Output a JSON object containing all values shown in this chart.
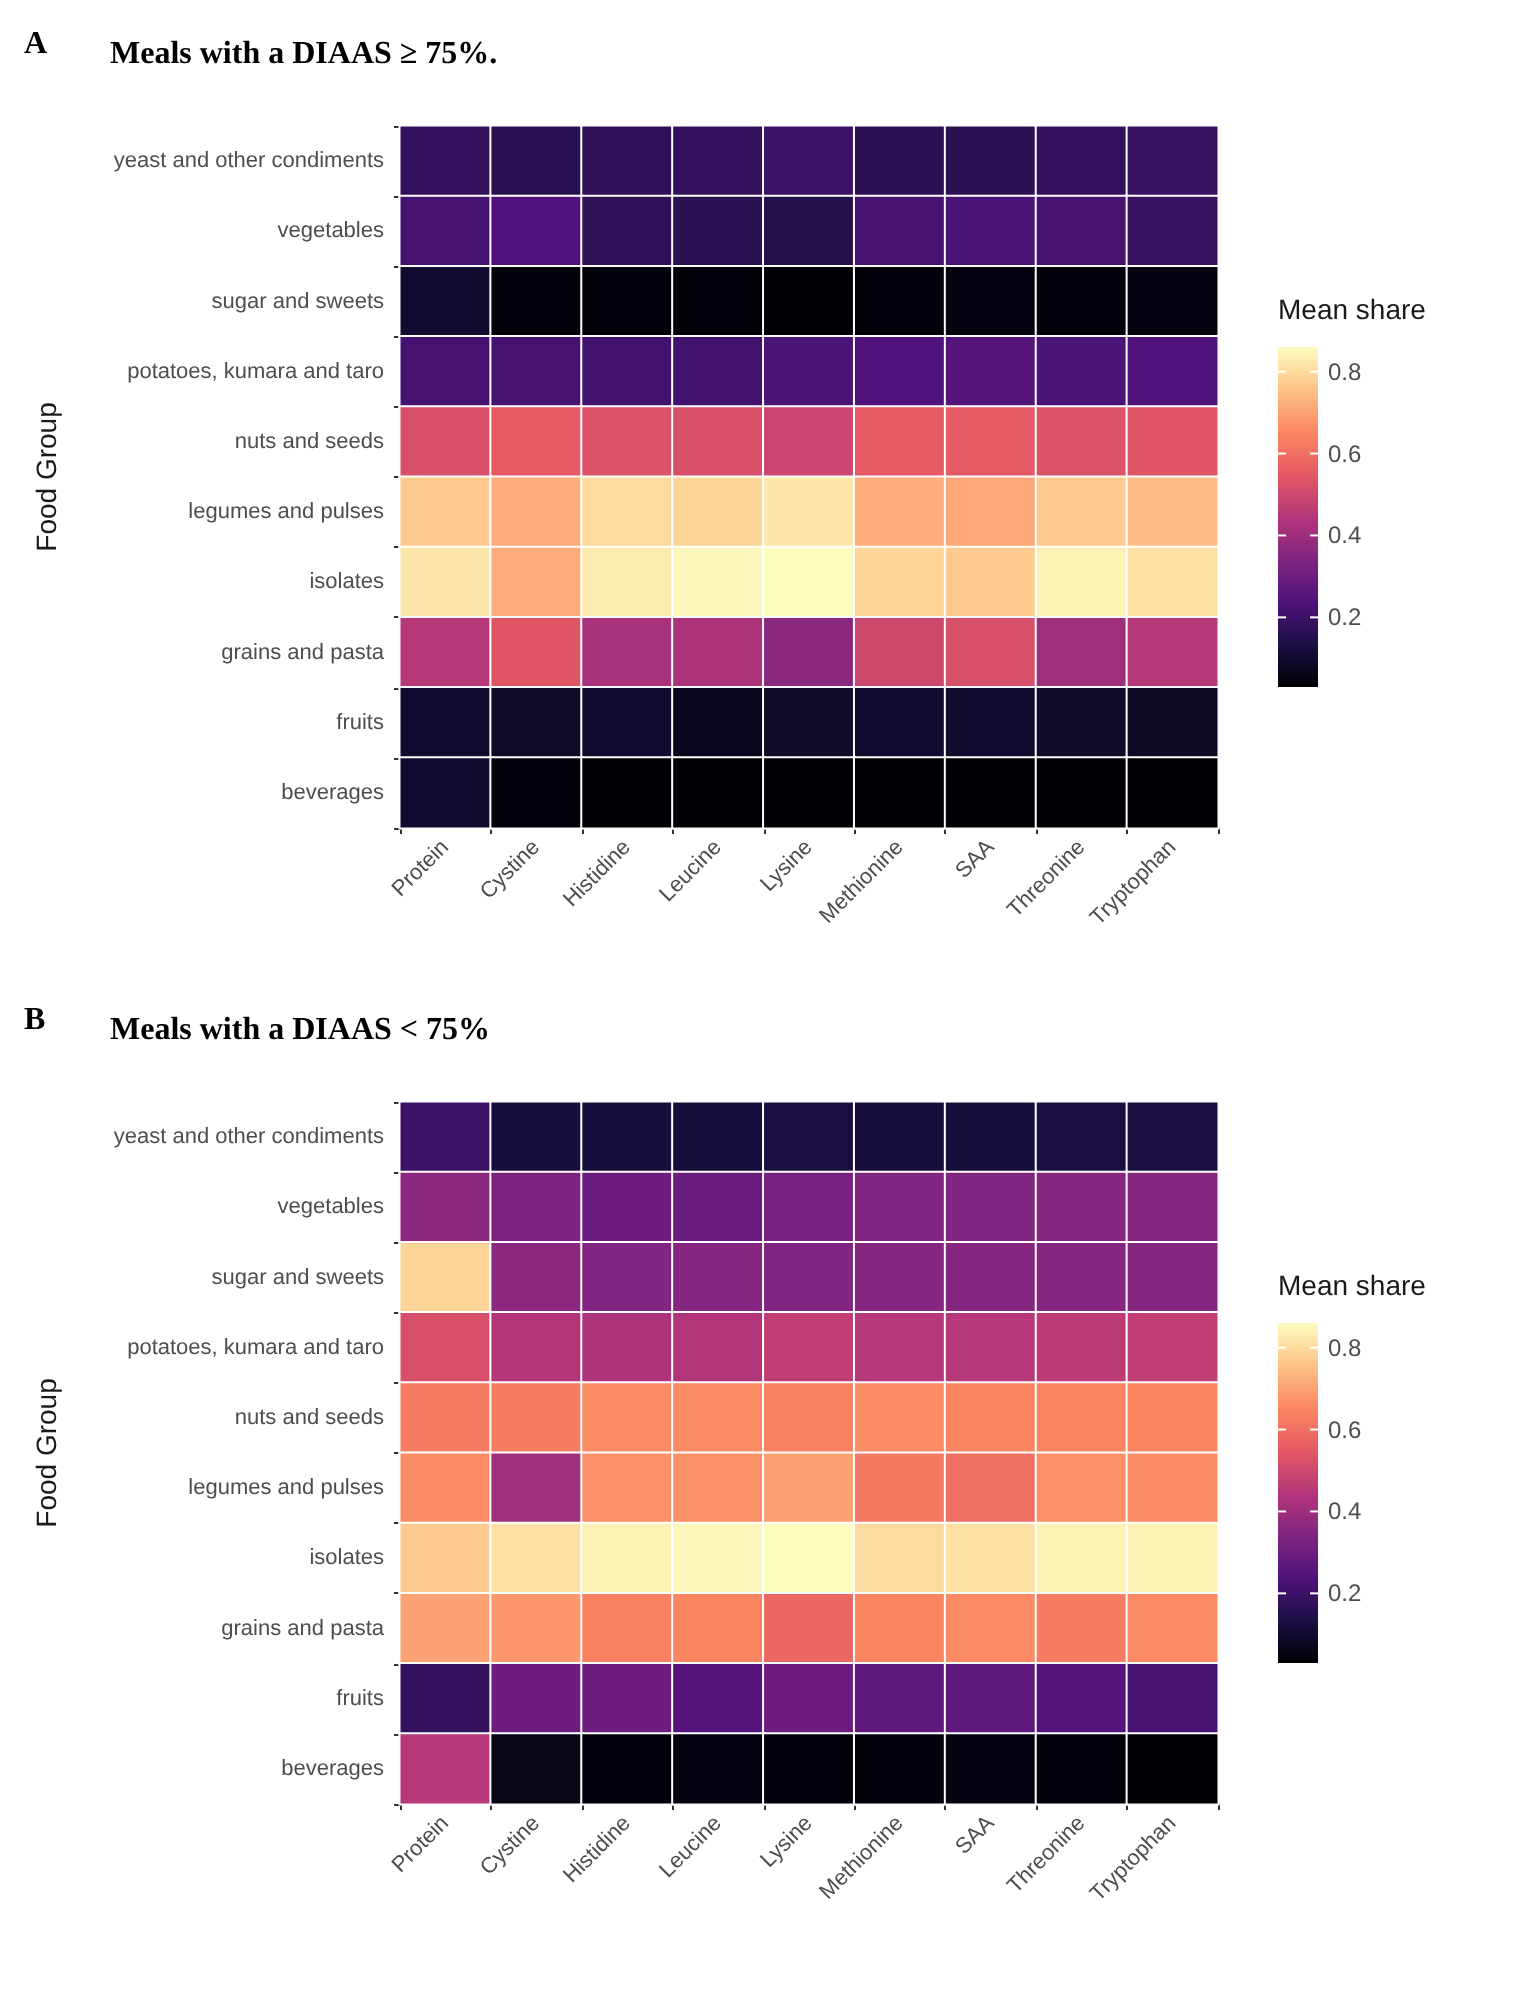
{
  "chart_data": [
    {
      "type": "heatmap",
      "title": "Meals with a DIAAS ≥ 75%.",
      "annotations": [
        "A"
      ],
      "ylabel": "Food Group",
      "clabel": "Mean share",
      "categories": [
        "Protein",
        "Cystine",
        "Histidine",
        "Leucine",
        "Lysine",
        "Methionine",
        "SAA",
        "Threonine",
        "Tryptophan"
      ],
      "y_categories": [
        "yeast and other condiments",
        "vegetables",
        "sugar and sweets",
        "potatoes, kumara and taro",
        "nuts and seeds",
        "legumes and pulses",
        "isolates",
        "grains and pasta",
        "fruits",
        "beverages"
      ],
      "cells": [
        [
          0.18,
          0.16,
          0.17,
          0.18,
          0.2,
          0.16,
          0.16,
          0.18,
          0.19
        ],
        [
          0.22,
          0.24,
          0.17,
          0.16,
          0.15,
          0.22,
          0.23,
          0.22,
          0.19
        ],
        [
          0.1,
          0.04,
          0.04,
          0.04,
          0.03,
          0.04,
          0.05,
          0.04,
          0.05
        ],
        [
          0.22,
          0.22,
          0.21,
          0.21,
          0.23,
          0.24,
          0.25,
          0.23,
          0.24
        ],
        [
          0.52,
          0.55,
          0.53,
          0.52,
          0.49,
          0.55,
          0.55,
          0.53,
          0.54
        ],
        [
          0.77,
          0.72,
          0.8,
          0.79,
          0.82,
          0.72,
          0.71,
          0.77,
          0.75
        ],
        [
          0.82,
          0.72,
          0.83,
          0.85,
          0.86,
          0.79,
          0.77,
          0.84,
          0.81
        ],
        [
          0.45,
          0.54,
          0.42,
          0.43,
          0.36,
          0.5,
          0.52,
          0.4,
          0.45
        ],
        [
          0.1,
          0.09,
          0.1,
          0.07,
          0.09,
          0.1,
          0.1,
          0.09,
          0.08
        ],
        [
          0.1,
          0.04,
          0.03,
          0.03,
          0.03,
          0.03,
          0.03,
          0.03,
          0.03
        ]
      ],
      "clim": [
        0.03,
        0.86
      ],
      "cticks": [
        0.2,
        0.4,
        0.6,
        0.8
      ]
    },
    {
      "type": "heatmap",
      "title": "Meals with a DIAAS < 75%",
      "annotations": [
        "B"
      ],
      "ylabel": "Food Group",
      "clabel": "Mean share",
      "categories": [
        "Protein",
        "Cystine",
        "Histidine",
        "Leucine",
        "Lysine",
        "Methionine",
        "SAA",
        "Threonine",
        "Tryptophan"
      ],
      "y_categories": [
        "yeast and other condiments",
        "vegetables",
        "sugar and sweets",
        "potatoes, kumara and taro",
        "nuts and seeds",
        "legumes and pulses",
        "isolates",
        "grains and pasta",
        "fruits",
        "beverages"
      ],
      "cells": [
        [
          0.2,
          0.12,
          0.12,
          0.12,
          0.13,
          0.12,
          0.12,
          0.13,
          0.13
        ],
        [
          0.36,
          0.33,
          0.3,
          0.29,
          0.32,
          0.34,
          0.34,
          0.35,
          0.35
        ],
        [
          0.79,
          0.36,
          0.34,
          0.35,
          0.34,
          0.35,
          0.35,
          0.35,
          0.35
        ],
        [
          0.52,
          0.44,
          0.43,
          0.44,
          0.47,
          0.45,
          0.45,
          0.46,
          0.47
        ],
        [
          0.63,
          0.63,
          0.66,
          0.66,
          0.64,
          0.66,
          0.65,
          0.65,
          0.65
        ],
        [
          0.66,
          0.4,
          0.67,
          0.67,
          0.7,
          0.62,
          0.6,
          0.67,
          0.66
        ],
        [
          0.77,
          0.81,
          0.84,
          0.85,
          0.86,
          0.8,
          0.81,
          0.84,
          0.84
        ],
        [
          0.7,
          0.68,
          0.64,
          0.65,
          0.58,
          0.65,
          0.66,
          0.63,
          0.66
        ],
        [
          0.18,
          0.3,
          0.3,
          0.25,
          0.3,
          0.27,
          0.27,
          0.25,
          0.22
        ],
        [
          0.45,
          0.06,
          0.04,
          0.05,
          0.04,
          0.04,
          0.05,
          0.04,
          0.03
        ]
      ],
      "clim": [
        0.03,
        0.86
      ],
      "cticks": [
        0.2,
        0.4,
        0.6,
        0.8
      ]
    }
  ]
}
